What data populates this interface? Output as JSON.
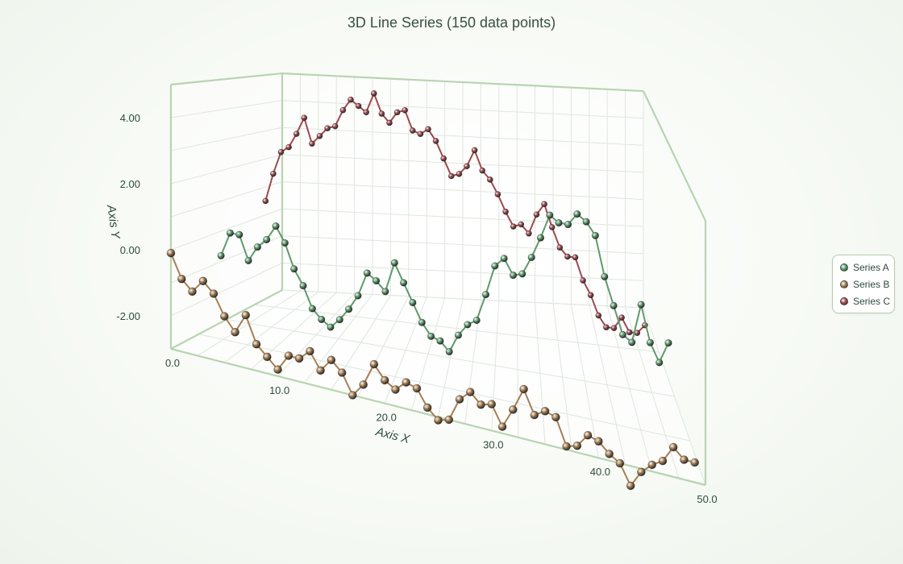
{
  "chart_data": {
    "type": "line",
    "title": "3D Line Series (150 data points)",
    "xlabel": "Axis X",
    "ylabel": "Axis Y",
    "xlim": [
      0,
      50
    ],
    "ylim": [
      -3,
      5
    ],
    "x_ticks": [
      "0.0",
      "10.0",
      "20.0",
      "30.0",
      "40.0",
      "50.0"
    ],
    "y_ticks": [
      "4.00",
      "2.00",
      "0.00",
      "-2.00"
    ],
    "grid": true,
    "legend_position": "right",
    "series": [
      {
        "name": "Series A",
        "color": "#5f9a6d",
        "points": [
          [
            0,
            -0.8
          ],
          [
            1,
            0
          ],
          [
            2,
            0
          ],
          [
            3,
            -0.8
          ],
          [
            4,
            -0.3
          ],
          [
            5,
            0
          ],
          [
            6,
            0.5
          ],
          [
            7,
            0
          ],
          [
            8,
            -0.8
          ],
          [
            9,
            -1.3
          ],
          [
            10,
            -2
          ],
          [
            11,
            -2.3
          ],
          [
            12,
            -2.5
          ],
          [
            13,
            -2.2
          ],
          [
            14,
            -1.8
          ],
          [
            15,
            -1.3
          ],
          [
            16,
            -0.5
          ],
          [
            17,
            -0.7
          ],
          [
            18,
            -1
          ],
          [
            19,
            0
          ],
          [
            20,
            -0.6
          ],
          [
            21,
            -1.2
          ],
          [
            22,
            -1.8
          ],
          [
            23,
            -2.2
          ],
          [
            24,
            -2.3
          ],
          [
            25,
            -2.6
          ],
          [
            26,
            -2
          ],
          [
            27,
            -1.6
          ],
          [
            28,
            -1.4
          ],
          [
            29,
            -0.5
          ],
          [
            30,
            0.5
          ],
          [
            31,
            0.8
          ],
          [
            32,
            0.3
          ],
          [
            33,
            0.4
          ],
          [
            34,
            1
          ],
          [
            35,
            1.7
          ],
          [
            36,
            2.5
          ],
          [
            37,
            2.3
          ],
          [
            38,
            2.3
          ],
          [
            39,
            2.7
          ],
          [
            40,
            2.5
          ],
          [
            41,
            2.1
          ],
          [
            42,
            0.8
          ],
          [
            43,
            -0.1
          ],
          [
            44,
            -1
          ],
          [
            45,
            -1.2
          ],
          [
            46,
            0.1
          ],
          [
            47,
            -1.1
          ],
          [
            48,
            -1.7
          ],
          [
            49,
            -1
          ]
        ]
      },
      {
        "name": "Series B",
        "color": "#a57f55",
        "points": [
          [
            0,
            -0.1
          ],
          [
            1,
            -0.8
          ],
          [
            2,
            -1.1
          ],
          [
            3,
            -0.7
          ],
          [
            4,
            -1
          ],
          [
            5,
            -1.6
          ],
          [
            6,
            -2
          ],
          [
            7,
            -1.4
          ],
          [
            8,
            -2.2
          ],
          [
            9,
            -2.5
          ],
          [
            10,
            -2.8
          ],
          [
            11,
            -2.3
          ],
          [
            12,
            -2.3
          ],
          [
            13,
            -2
          ],
          [
            14,
            -2.5
          ],
          [
            15,
            -2.1
          ],
          [
            16,
            -2.4
          ],
          [
            17,
            -3
          ],
          [
            18,
            -2.6
          ],
          [
            19,
            -1.9
          ],
          [
            20,
            -2.3
          ],
          [
            21,
            -2.5
          ],
          [
            22,
            -2.2
          ],
          [
            23,
            -2.3
          ],
          [
            24,
            -2.8
          ],
          [
            25,
            -3.1
          ],
          [
            26,
            -3
          ],
          [
            27,
            -2.3
          ],
          [
            28,
            -2
          ],
          [
            29,
            -2.3
          ],
          [
            30,
            -2.2
          ],
          [
            31,
            -2.8
          ],
          [
            32,
            -2.2
          ],
          [
            33,
            -1.5
          ],
          [
            34,
            -2.2
          ],
          [
            35,
            -2
          ],
          [
            36,
            -2.1
          ],
          [
            37,
            -2.9
          ],
          [
            38,
            -2.8
          ],
          [
            39,
            -2.4
          ],
          [
            40,
            -2.5
          ],
          [
            41,
            -2.8
          ],
          [
            42,
            -3
          ],
          [
            43,
            -3.6
          ],
          [
            44,
            -3.1
          ],
          [
            45,
            -2.8
          ],
          [
            46,
            -2.6
          ],
          [
            47,
            -2.1
          ],
          [
            48,
            -2.4
          ],
          [
            49,
            -2.4
          ]
        ]
      },
      {
        "name": "Series C",
        "color": "#9d4a50",
        "points": [
          [
            0,
            0.5
          ],
          [
            1,
            1.5
          ],
          [
            2,
            2.3
          ],
          [
            3,
            2.5
          ],
          [
            4,
            3
          ],
          [
            5,
            3.6
          ],
          [
            6,
            2.7
          ],
          [
            7,
            3
          ],
          [
            8,
            3.3
          ],
          [
            9,
            3.4
          ],
          [
            10,
            4
          ],
          [
            11,
            4.4
          ],
          [
            12,
            4.2
          ],
          [
            13,
            4
          ],
          [
            14,
            4.7
          ],
          [
            15,
            4
          ],
          [
            16,
            3.7
          ],
          [
            17,
            4.1
          ],
          [
            18,
            4.2
          ],
          [
            19,
            3.5
          ],
          [
            20,
            3.4
          ],
          [
            21,
            3.6
          ],
          [
            22,
            3.2
          ],
          [
            23,
            2.6
          ],
          [
            24,
            2
          ],
          [
            25,
            2.1
          ],
          [
            26,
            2.4
          ],
          [
            27,
            3
          ],
          [
            28,
            2.3
          ],
          [
            29,
            2
          ],
          [
            30,
            1.5
          ],
          [
            31,
            0.9
          ],
          [
            32,
            0.4
          ],
          [
            33,
            0.5
          ],
          [
            34,
            0.2
          ],
          [
            35,
            0.9
          ],
          [
            36,
            1.3
          ],
          [
            37,
            0.5
          ],
          [
            38,
            -0.2
          ],
          [
            39,
            -0.5
          ],
          [
            40,
            -0.5
          ],
          [
            41,
            -1.3
          ],
          [
            42,
            -1.8
          ],
          [
            43,
            -2.5
          ],
          [
            44,
            -2.9
          ],
          [
            45,
            -2.9
          ],
          [
            46,
            -2.5
          ],
          [
            47,
            -3
          ],
          [
            48,
            -3
          ],
          [
            49,
            -2.7
          ]
        ]
      }
    ]
  }
}
